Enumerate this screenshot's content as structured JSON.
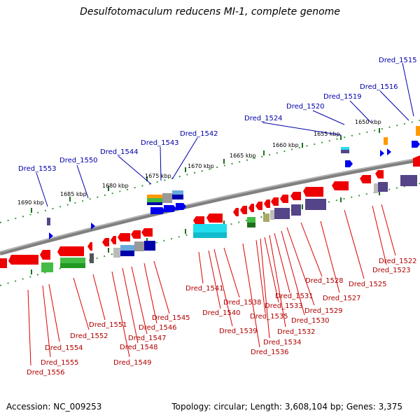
{
  "title": "Desulfotomaculum reducens MI-1, complete genome",
  "accession": "Accession: NC_009253",
  "topology": "Topology: circular; Length: 3,608,104 bp; Genes: 3,375",
  "kbp_labels": [
    "1650 kbp",
    "1655 kbp",
    "1660 kbp",
    "1665 kbp",
    "1670 kbp",
    "1675 kbp",
    "1680 kbp",
    "1685 kbp",
    "1690 kbp"
  ],
  "upper_labels": [
    "Dred_1515",
    "Dred_1516",
    "Dred_1519",
    "Dred_1520",
    "Dred_1524",
    "Dred_1542",
    "Dred_1543",
    "Dred_1544",
    "Dred_1550",
    "Dred_1553"
  ],
  "lower_labels": [
    "Dred_1522",
    "Dred_1523",
    "Dred_1525",
    "Dred_1527",
    "Dred_1528",
    "Dred_1529",
    "Dred_1530",
    "Dred_1531",
    "Dred_1532",
    "Dred_1533",
    "Dred_1534",
    "Dred_1535",
    "Dred_1536",
    "Dred_1538",
    "Dred_1539",
    "Dred_1540",
    "Dred_1541",
    "Dred_1545",
    "Dred_1546",
    "Dred_1547",
    "Dred_1548",
    "Dred_1549",
    "Dred_1551",
    "Dred_1552",
    "Dred_1554",
    "Dred_1555",
    "Dred_1556"
  ],
  "colors": {
    "backbone": "#808080",
    "minor_tick": "#3a9a3a",
    "major_tick": "#1e6e1e",
    "forward_gene": "#0000ee",
    "reverse_gene": "#ee0000",
    "upper_label": "#0000aa",
    "lower_label": "#b00000",
    "feature_green": "#44bb44",
    "feature_cyan": "#22ddee",
    "feature_orange": "#ff9900",
    "feature_purple": "#554488",
    "feature_grey": "#999999",
    "feature_olive": "#aaaa66"
  }
}
